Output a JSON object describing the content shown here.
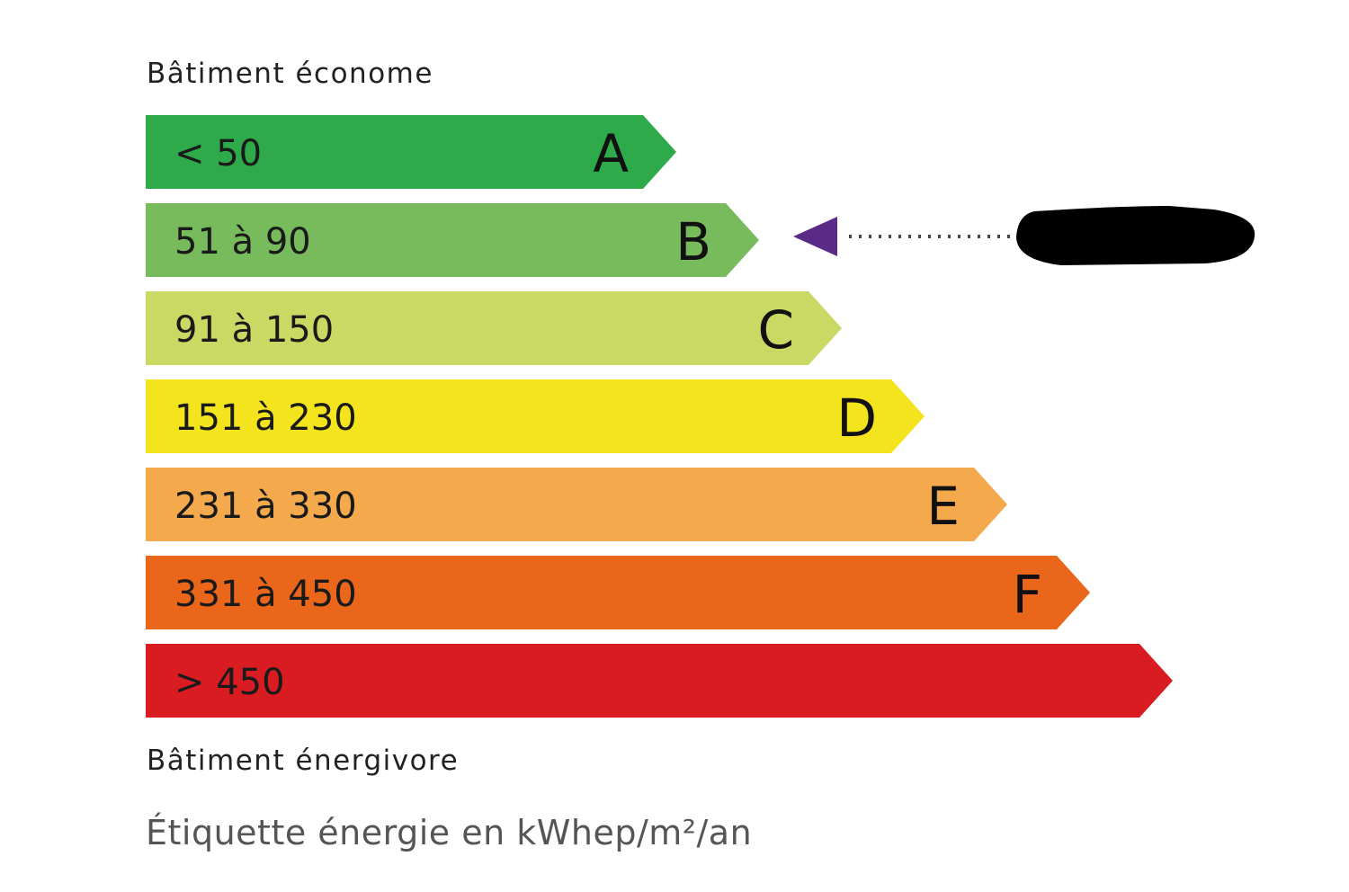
{
  "header": {
    "top_label": "Bâtiment économe"
  },
  "footer": {
    "bottom_label": "Bâtiment énergivore",
    "unit_label": "Étiquette énergie en kWhep/m²/an"
  },
  "classes": [
    {
      "letter": "A",
      "range": "< 50",
      "color": "#2eaa4a"
    },
    {
      "letter": "B",
      "range": "51 à 90",
      "color": "#77bb5c"
    },
    {
      "letter": "C",
      "range": "91 à 150",
      "color": "#c9d964"
    },
    {
      "letter": "D",
      "range": "151 à 230",
      "color": "#f4e41e"
    },
    {
      "letter": "E",
      "range": "231 à 330",
      "color": "#f4a94c"
    },
    {
      "letter": "F",
      "range": "331 à 450",
      "color": "#e9661b"
    },
    {
      "letter": "",
      "range": "> 450",
      "color": "#d91c22"
    }
  ],
  "indicator": {
    "class": "B",
    "color": "#5b2a86",
    "value_redacted": true
  }
}
